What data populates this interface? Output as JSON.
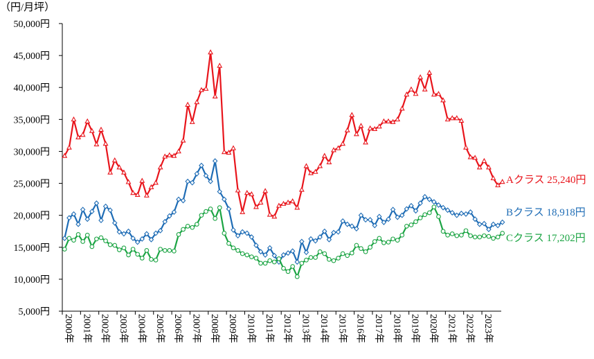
{
  "chart_data": {
    "type": "line",
    "unit_label": "（円/月坪）",
    "ylim": [
      5000,
      50000
    ],
    "y_ticks": [
      "5,000円",
      "10,000円",
      "15,000円",
      "20,000円",
      "25,000円",
      "30,000円",
      "35,000円",
      "40,000円",
      "45,000円",
      "50,000円"
    ],
    "x_ticks": [
      "2000年",
      "2001年",
      "2002年",
      "2003年",
      "2004年",
      "2005年",
      "2006年",
      "2007年",
      "2008年",
      "2009年",
      "2010年",
      "2011年",
      "2012年",
      "2013年",
      "2014年",
      "2015年",
      "2016年",
      "2017年",
      "2018年",
      "2019年",
      "2020年",
      "2021年",
      "2022年",
      "2023年"
    ],
    "x_start": "2000年",
    "points_per_year": 4,
    "series": [
      {
        "name": "Aクラス",
        "end_label": "Aクラス 25,240円",
        "color": "#e8141b",
        "marker": "triangle",
        "values": [
          29300,
          30600,
          35000,
          32200,
          32600,
          34700,
          33200,
          31100,
          33400,
          31200,
          26700,
          28600,
          27500,
          26700,
          25200,
          23500,
          23200,
          25400,
          23100,
          24400,
          25100,
          27500,
          29200,
          29400,
          29300,
          30000,
          31700,
          37300,
          34600,
          37700,
          39600,
          39800,
          45500,
          38600,
          43400,
          29900,
          29800,
          30500,
          23900,
          20500,
          23500,
          23300,
          21300,
          22000,
          23800,
          20100,
          19800,
          21500,
          21800,
          22000,
          22200,
          21200,
          24000,
          27700,
          26600,
          26800,
          27700,
          29300,
          28300,
          30200,
          30500,
          31200,
          33300,
          35700,
          32700,
          34000,
          31400,
          33600,
          33500,
          33900,
          34700,
          34700,
          34600,
          35000,
          36700,
          38900,
          39700,
          39000,
          41600,
          39700,
          42300,
          38900,
          39000,
          38000,
          35000,
          35200,
          35200,
          34800,
          30600,
          29100,
          29000,
          27500,
          28500,
          27500,
          25800,
          24700,
          25240
        ]
      },
      {
        "name": "Bクラス",
        "end_label": "Bクラス 18,918円",
        "color": "#1e6cb5",
        "marker": "diamond",
        "values": [
          16400,
          19600,
          20200,
          18600,
          20900,
          19400,
          20600,
          21900,
          19200,
          21400,
          20800,
          18800,
          17400,
          17100,
          17500,
          16400,
          15800,
          16300,
          17100,
          16200,
          17200,
          17600,
          19000,
          19900,
          20500,
          22500,
          22300,
          25300,
          25100,
          26500,
          27800,
          26200,
          25300,
          28500,
          23700,
          22500,
          21000,
          17700,
          16800,
          17400,
          17200,
          16600,
          15300,
          14300,
          13800,
          14900,
          13700,
          12700,
          13800,
          14100,
          14400,
          12700,
          15900,
          14200,
          16300,
          16000,
          16600,
          17500,
          16200,
          17300,
          17400,
          19100,
          18600,
          18300,
          17900,
          20000,
          19300,
          19300,
          18400,
          19800,
          18900,
          19400,
          20900,
          19700,
          20000,
          21000,
          21500,
          20700,
          21900,
          22900,
          22500,
          22100,
          21600,
          21200,
          20800,
          20400,
          20000,
          20300,
          20200,
          20500,
          19400,
          18600,
          18700,
          17800,
          18600,
          18400,
          18918
        ]
      },
      {
        "name": "Cクラス",
        "end_label": "Cクラス 17,202円",
        "color": "#1ba443",
        "marker": "circle",
        "values": [
          14700,
          16400,
          16100,
          17000,
          15900,
          16900,
          15100,
          16300,
          16500,
          16000,
          15400,
          15300,
          14600,
          14900,
          13800,
          14700,
          13900,
          13300,
          14500,
          13100,
          13000,
          14700,
          14500,
          14500,
          14400,
          17000,
          17800,
          18300,
          18100,
          18600,
          20000,
          20600,
          21000,
          19500,
          21200,
          17200,
          15600,
          14900,
          14500,
          14000,
          13800,
          13500,
          13300,
          12500,
          12500,
          12900,
          12700,
          13200,
          11700,
          11200,
          12000,
          10400,
          12500,
          13000,
          13400,
          13400,
          14300,
          14000,
          13100,
          12900,
          13300,
          14000,
          13700,
          14100,
          15300,
          14800,
          14300,
          15000,
          15900,
          16400,
          15700,
          15800,
          16300,
          16100,
          16900,
          18300,
          18500,
          19000,
          19600,
          20100,
          20400,
          21300,
          19800,
          17500,
          16900,
          17100,
          16800,
          16900,
          17600,
          16800,
          16600,
          16600,
          16800,
          16700,
          16400,
          16600,
          17202
        ]
      }
    ]
  }
}
